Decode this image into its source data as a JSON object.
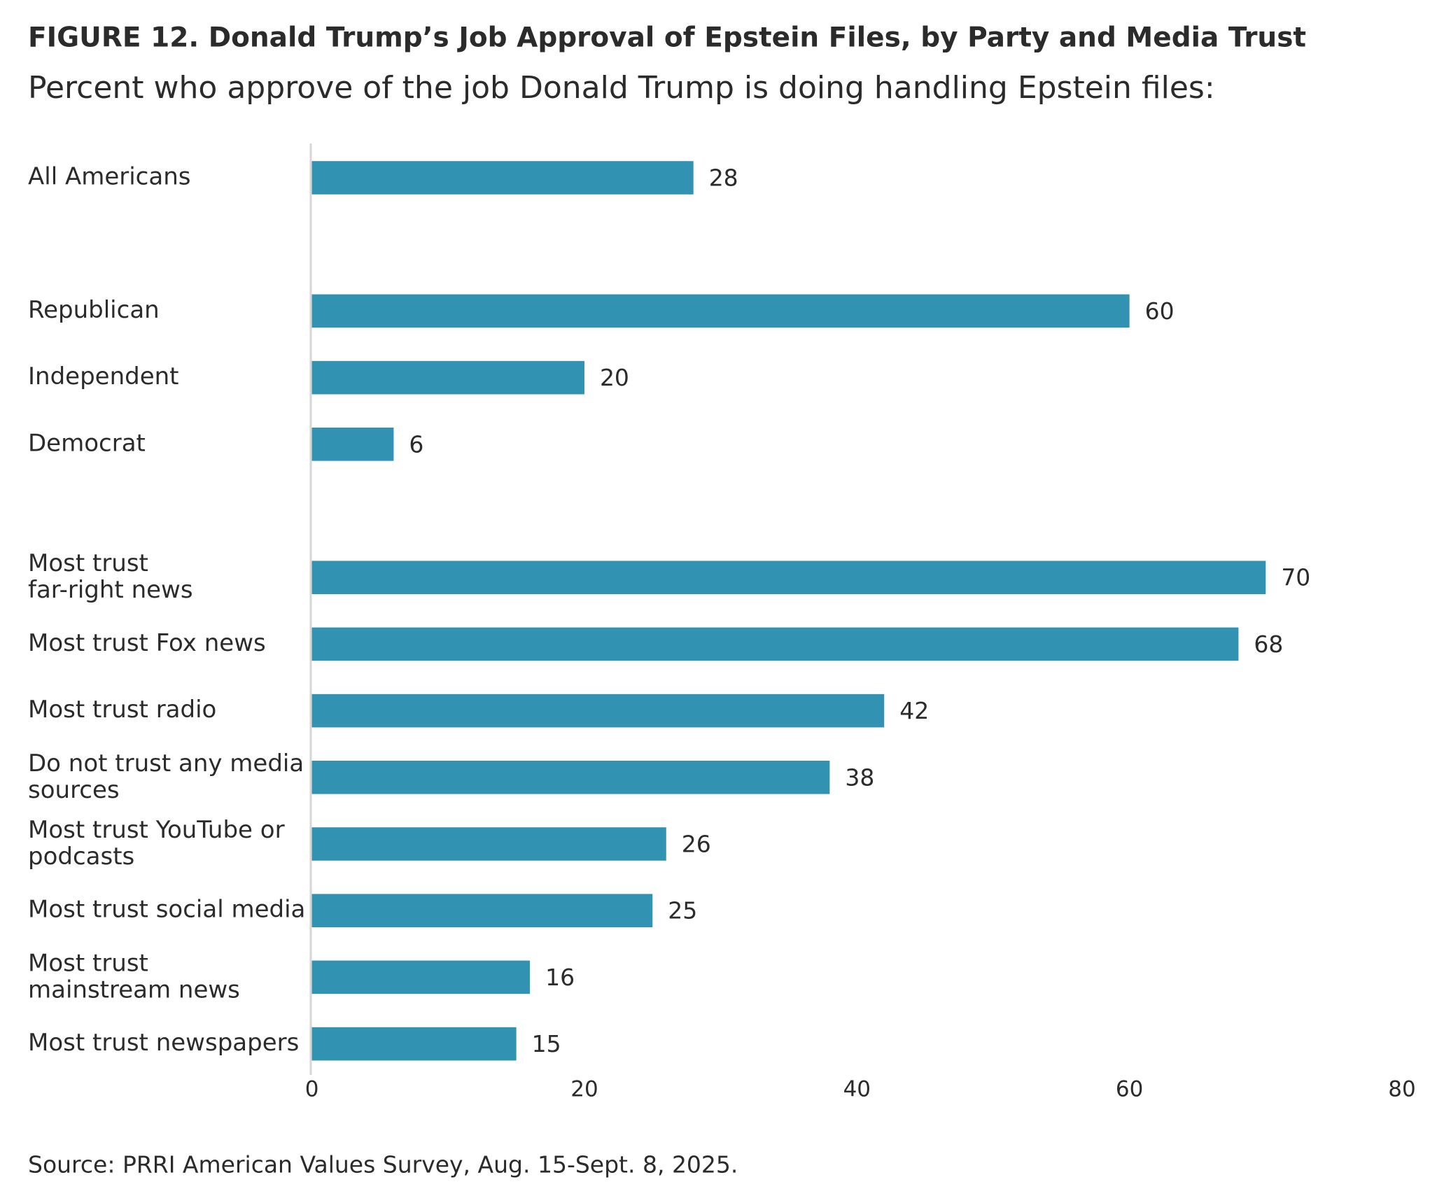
{
  "chart_data": {
    "type": "bar",
    "orientation": "horizontal",
    "title": "FIGURE 12.  Donald Trump’s Job Approval of Epstein Files, by Party and Media Trust",
    "subtitle": "Percent who approve of the job Donald Trump is doing handling Epstein files:",
    "categories": [
      "All Americans",
      null,
      "Republican",
      "Independent",
      "Democrat",
      null,
      "Most trust\nfar-right news",
      "Most trust Fox news",
      "Most trust radio",
      "Do not trust any media\nsources",
      "Most trust YouTube or\npodcasts",
      "Most trust social media",
      "Most trust\nmainstream news",
      "Most trust newspapers"
    ],
    "values": [
      28,
      null,
      60,
      20,
      6,
      null,
      70,
      68,
      42,
      38,
      26,
      25,
      16,
      15
    ],
    "color": "#3292b1",
    "xlim": [
      0,
      80
    ],
    "xticks": [
      0,
      20,
      40,
      60,
      80
    ],
    "grid": false,
    "source": "Source: PRRI American Values Survey, Aug. 15-Sept. 8, 2025."
  }
}
